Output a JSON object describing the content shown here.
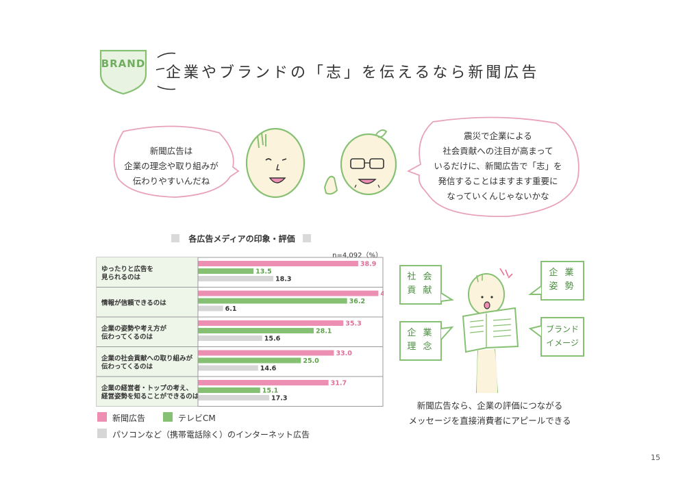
{
  "badge": "BRAND",
  "headline": "企業やブランドの「志」を伝えるなら新聞広告",
  "bubble_left": [
    "新聞広告は",
    "企業の理念や取り組みが",
    "伝わりやすいんだね"
  ],
  "bubble_right": [
    "震災で企業による",
    "社会貢献への注目が高まって",
    "いるだけに、新聞広告で「志」を",
    "発信することはますます重要に",
    "なっていくんじゃないかな"
  ],
  "chart_data": {
    "type": "bar",
    "orientation": "horizontal",
    "title": "各広告メディアの印象・評価",
    "note": "n=4,092（%）",
    "categories": [
      [
        "ゆったりと広告を",
        "見られるのは"
      ],
      [
        "情報が信頼できるのは"
      ],
      [
        "企業の姿勢や考え方が",
        "伝わってくるのは"
      ],
      [
        "企業の社会貢献への取り組みが",
        "伝わってくるのは"
      ],
      [
        "企業の経営者・トップの考え、",
        "経営姿勢を知ることができるのは"
      ]
    ],
    "series": [
      {
        "name": "新聞広告",
        "color": "#ec8fb2",
        "values": [
          38.9,
          43.8,
          35.3,
          33.0,
          31.7
        ],
        "labels": [
          "38.9",
          "43.8",
          "35.3",
          "33.0",
          "31.7"
        ]
      },
      {
        "name": "テレビCM",
        "color": "#86c072",
        "values": [
          13.5,
          36.2,
          28.1,
          25.0,
          15.1
        ],
        "labels": [
          "13.5",
          "36.2",
          "28.1",
          "25.0",
          "15.1"
        ]
      },
      {
        "name": "パソコンなど（携帯電話除く）のインターネット広告",
        "color": "#d6d6d6",
        "values": [
          18.3,
          6.1,
          15.6,
          14.6,
          17.3
        ],
        "labels": [
          "18.3",
          "6.1",
          "15.6",
          "14.6",
          "17.3"
        ]
      }
    ],
    "xlim": [
      0,
      50
    ],
    "grid": false,
    "legend_placement": "bottom-left"
  },
  "keyword_boxes": [
    {
      "lines": [
        "社 会",
        "貢 献"
      ]
    },
    {
      "lines": [
        "企 業",
        "理 念"
      ]
    },
    {
      "lines": [
        "企 業",
        "姿 勢"
      ]
    },
    {
      "lines": [
        "ブランド",
        "イメージ"
      ]
    }
  ],
  "caption": [
    "新聞広告なら、企業の評価につながる",
    "メッセージを直接消費者にアピールできる"
  ],
  "page_number": "15",
  "colors": {
    "accent_green": "#86c072",
    "accent_pink": "#ec8fb2",
    "outline_pink": "#e8a0bc",
    "gray": "#d6d6d6"
  }
}
